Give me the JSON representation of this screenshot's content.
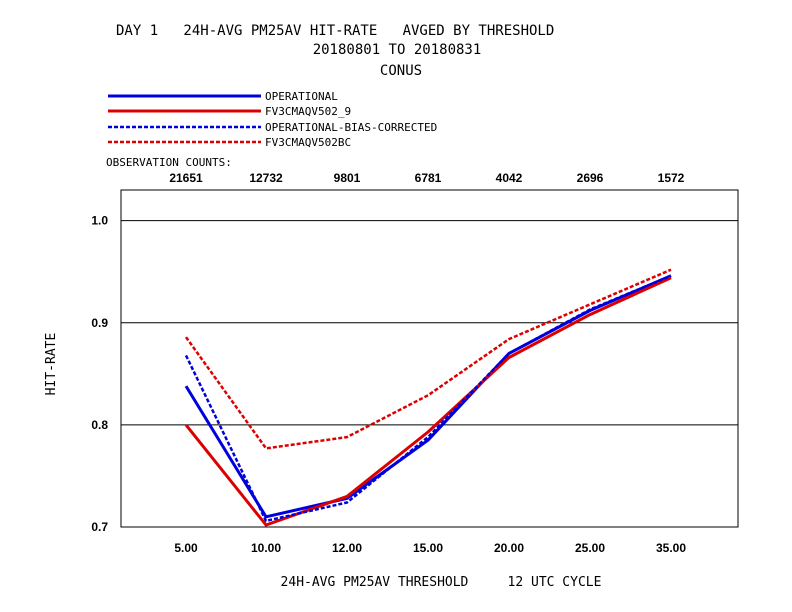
{
  "header": {
    "title_line1": "DAY 1   24H-AVG PM25AV HIT-RATE   AVGED BY THRESHOLD",
    "title_line2": "20180801 TO 20180831",
    "title_line3": "CONUS"
  },
  "obs_counts_label": "OBSERVATION COUNTS:",
  "colors": {
    "blue": "#0000dd",
    "red": "#dd0000",
    "grid": "#000000"
  },
  "chart_data": {
    "type": "line",
    "title": "DAY 1   24H-AVG PM25AV HIT-RATE   AVGED BY THRESHOLD",
    "xlabel": "24H-AVG PM25AV THRESHOLD     12 UTC CYCLE",
    "ylabel": "HIT-RATE",
    "categories": [
      "5.00",
      "10.00",
      "12.00",
      "15.00",
      "20.00",
      "25.00",
      "35.00"
    ],
    "observation_counts": [
      "21651",
      "12732",
      "9801",
      "6781",
      "4042",
      "2696",
      "1572"
    ],
    "ylim": [
      0.7,
      1.03
    ],
    "yticks": [
      "0.7",
      "0.8",
      "0.9",
      "1.0"
    ],
    "grid": "horizontal",
    "legend_position": "top-left",
    "series": [
      {
        "name": "OPERATIONAL",
        "color": "#0000dd",
        "dashed": false,
        "values": [
          0.838,
          0.71,
          0.728,
          0.785,
          0.87,
          0.912,
          0.946
        ]
      },
      {
        "name": "FV3CMAQV502_9",
        "color": "#dd0000",
        "dashed": false,
        "values": [
          0.8,
          0.702,
          0.73,
          0.793,
          0.866,
          0.908,
          0.944
        ]
      },
      {
        "name": "OPERATIONAL-BIAS-CORRECTED",
        "color": "#0000dd",
        "dashed": true,
        "values": [
          0.868,
          0.706,
          0.724,
          0.788,
          0.87,
          0.913,
          0.946
        ]
      },
      {
        "name": "FV3CMAQV502BC",
        "color": "#dd0000",
        "dashed": true,
        "values": [
          0.886,
          0.777,
          0.788,
          0.829,
          0.884,
          0.918,
          0.952
        ]
      }
    ]
  }
}
